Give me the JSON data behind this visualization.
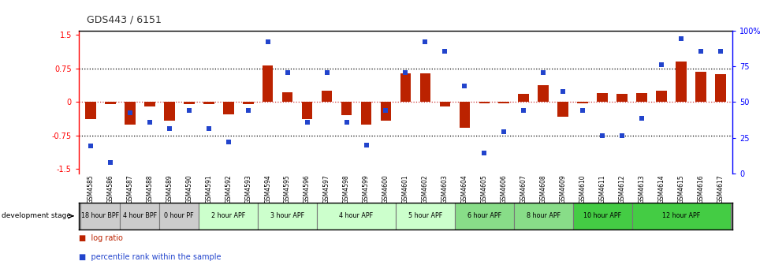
{
  "title": "GDS443 / 6151",
  "samples": [
    "GSM4585",
    "GSM4586",
    "GSM4587",
    "GSM4588",
    "GSM4589",
    "GSM4590",
    "GSM4591",
    "GSM4592",
    "GSM4593",
    "GSM4594",
    "GSM4595",
    "GSM4596",
    "GSM4597",
    "GSM4598",
    "GSM4599",
    "GSM4600",
    "GSM4601",
    "GSM4602",
    "GSM4603",
    "GSM4604",
    "GSM4605",
    "GSM4606",
    "GSM4607",
    "GSM4608",
    "GSM4609",
    "GSM4610",
    "GSM4611",
    "GSM4612",
    "GSM4613",
    "GSM4614",
    "GSM4615",
    "GSM4616",
    "GSM4617"
  ],
  "log_ratio": [
    -0.38,
    -0.05,
    -0.5,
    -0.1,
    -0.42,
    -0.05,
    -0.05,
    -0.28,
    -0.05,
    0.82,
    0.22,
    -0.38,
    0.25,
    -0.3,
    -0.5,
    -0.42,
    0.65,
    0.65,
    -0.1,
    -0.58,
    -0.03,
    -0.03,
    0.18,
    0.38,
    -0.32,
    -0.03,
    0.2,
    0.18,
    0.2,
    0.25,
    0.9,
    0.68,
    0.62
  ],
  "percentile": [
    17,
    5,
    42,
    35,
    30,
    44,
    30,
    20,
    44,
    95,
    72,
    35,
    72,
    35,
    18,
    44,
    72,
    95,
    88,
    62,
    12,
    28,
    44,
    72,
    58,
    44,
    25,
    25,
    38,
    78,
    97,
    88,
    88
  ],
  "stage_groups": [
    {
      "label": "18 hour BPF",
      "start": 0,
      "end": 2,
      "color": "#cccccc"
    },
    {
      "label": "4 hour BPF",
      "start": 2,
      "end": 4,
      "color": "#cccccc"
    },
    {
      "label": "0 hour PF",
      "start": 4,
      "end": 6,
      "color": "#cccccc"
    },
    {
      "label": "2 hour APF",
      "start": 6,
      "end": 9,
      "color": "#ccffcc"
    },
    {
      "label": "3 hour APF",
      "start": 9,
      "end": 12,
      "color": "#ccffcc"
    },
    {
      "label": "4 hour APF",
      "start": 12,
      "end": 16,
      "color": "#ccffcc"
    },
    {
      "label": "5 hour APF",
      "start": 16,
      "end": 19,
      "color": "#ccffcc"
    },
    {
      "label": "6 hour APF",
      "start": 19,
      "end": 22,
      "color": "#88dd88"
    },
    {
      "label": "8 hour APF",
      "start": 22,
      "end": 25,
      "color": "#88dd88"
    },
    {
      "label": "10 hour APF",
      "start": 25,
      "end": 28,
      "color": "#44cc44"
    },
    {
      "label": "12 hour APF",
      "start": 28,
      "end": 33,
      "color": "#44cc44"
    }
  ],
  "ylim_left": [
    -1.6,
    1.6
  ],
  "ylim_right": [
    0,
    100
  ],
  "yticks_left": [
    -1.5,
    -0.75,
    0.0,
    0.75,
    1.5
  ],
  "ytick_left_labels": [
    "-1.5",
    "-0.75",
    "0",
    "0.75",
    "1.5"
  ],
  "yticks_right": [
    0,
    25,
    50,
    75,
    100
  ],
  "ytick_right_labels": [
    "0",
    "25",
    "50",
    "75",
    "100%"
  ],
  "bar_color": "#bb2200",
  "dot_color": "#2244cc",
  "hline_dotted": [
    0.75,
    -0.75
  ],
  "hline_zero_color": "#cc3333",
  "background_color": "#ffffff",
  "title_color": "#333333",
  "legend_log_ratio": "log ratio",
  "legend_percentile": "percentile rank within the sample",
  "dev_stage_label": "development stage",
  "dev_stage_bg": "#aaaaaa",
  "stage_border_color": "#777777"
}
